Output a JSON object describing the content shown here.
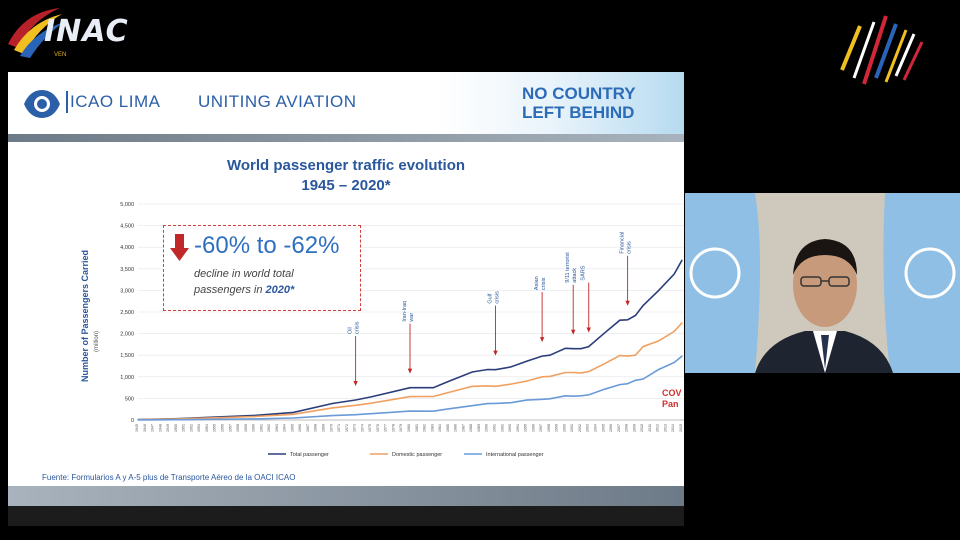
{
  "brand": {
    "inac_wordmark": "INAC",
    "inac_sub": "VEN"
  },
  "slide": {
    "org_name": "ICAO LIMA",
    "tagline": "UNITING AVIATION",
    "campaign_line1": "NO COUNTRY",
    "campaign_line2": "LEFT BEHIND",
    "source_note": "Fuente: Formularios A y A-5 plus de Transporte Aéreo de la OACI ICAO",
    "callout": {
      "headline": "-60% to -62%",
      "line1": "decline in world total",
      "line2_prefix": "passengers in ",
      "line2_bold": "2020*"
    },
    "covid_label_line1": "COV",
    "covid_label_line2": "Pan"
  },
  "chart_data": {
    "type": "line",
    "title": "World passenger traffic evolution",
    "subtitle": "1945 – 2020*",
    "ylabel": "Number of Passengers Carried",
    "ylabel_unit": "(million)",
    "ylim": [
      0,
      5000
    ],
    "yticks": [
      "5,000",
      "4,500",
      "4,000",
      "3,500",
      "3,000",
      "2,500",
      "2,000",
      "1,500",
      "1,000",
      "500",
      "0"
    ],
    "x": [
      1945,
      1950,
      1955,
      1960,
      1965,
      1970,
      1973,
      1975,
      1980,
      1983,
      1985,
      1988,
      1990,
      1991,
      1993,
      1995,
      1997,
      1998,
      2000,
      2001,
      2002,
      2003,
      2005,
      2007,
      2008,
      2009,
      2010,
      2012,
      2014,
      2015
    ],
    "series": [
      {
        "name": "Total passenger",
        "color": "#2c3e7a",
        "values": [
          9,
          31,
          68,
          106,
          177,
          383,
          463,
          534,
          748,
          748,
          899,
          1110,
          1170,
          1165,
          1230,
          1360,
          1480,
          1500,
          1660,
          1650,
          1650,
          1700,
          2010,
          2310,
          2320,
          2420,
          2650,
          3000,
          3380,
          3700
        ]
      },
      {
        "name": "Domestic passenger",
        "color": "#f0a060",
        "values": [
          7,
          25,
          52,
          80,
          131,
          280,
          340,
          388,
          542,
          545,
          640,
          780,
          790,
          780,
          830,
          900,
          1000,
          1010,
          1100,
          1100,
          1090,
          1120,
          1300,
          1490,
          1480,
          1500,
          1700,
          1830,
          2050,
          2250
        ]
      },
      {
        "name": "International passenger",
        "color": "#6a9ad8",
        "values": [
          2,
          6,
          16,
          26,
          46,
          103,
          123,
          146,
          206,
          203,
          259,
          330,
          380,
          385,
          400,
          460,
          480,
          490,
          560,
          550,
          560,
          580,
          710,
          820,
          840,
          920,
          950,
          1170,
          1330,
          1480
        ]
      }
    ],
    "events": [
      {
        "label_line1": "Oil",
        "label_line2": "crisis",
        "year": 1973
      },
      {
        "label_line1": "Iran-Iraq",
        "label_line2": "war",
        "year": 1980
      },
      {
        "label_line1": "Gulf",
        "label_line2": "crisis",
        "year": 1991
      },
      {
        "label_line1": "Asian",
        "label_line2": "crisis",
        "year": 1997
      },
      {
        "label_line1": "9/11 terrorist",
        "label_line2": "attack",
        "year": 2001
      },
      {
        "label_line1": "SARS",
        "label_line2": "",
        "year": 2003
      },
      {
        "label_line1": "Financial",
        "label_line2": "crisis",
        "year": 2008
      }
    ],
    "legend_position": "bottom",
    "grid": true
  },
  "colors": {
    "accent_blue": "#2a579c",
    "alert_red": "#d0403c"
  },
  "video": {
    "subject": "presenter-with-un-flags"
  }
}
